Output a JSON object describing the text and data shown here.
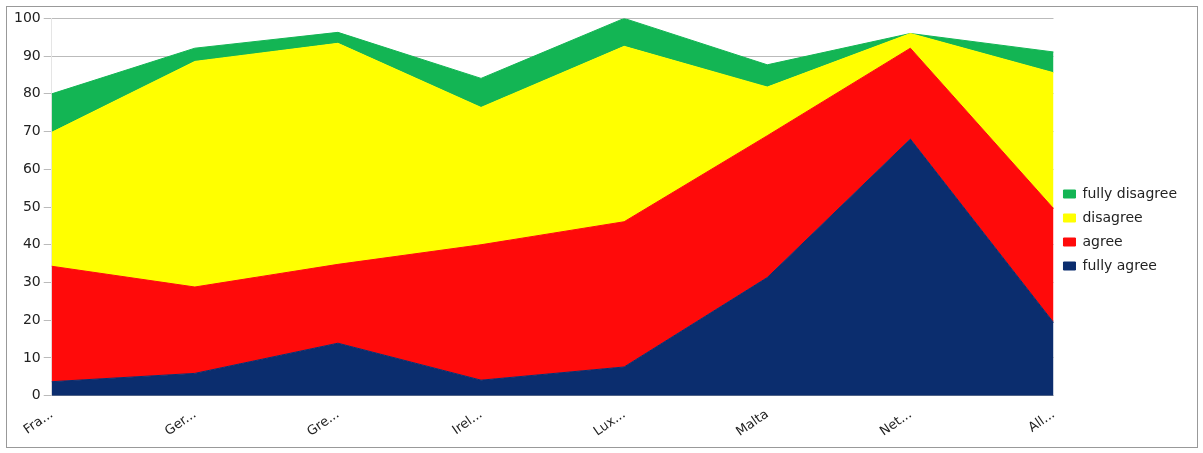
{
  "chart_data": {
    "type": "area",
    "stacked": true,
    "categories": [
      "Fra...",
      "Ger...",
      "Gre...",
      "Irel...",
      "Lux...",
      "Malta",
      "Net...",
      "All..."
    ],
    "series": [
      {
        "name": "fully agree",
        "color": "#0b2d6e",
        "values": [
          3.7,
          5.9,
          13.9,
          4.1,
          7.6,
          31.3,
          68,
          19.4
        ]
      },
      {
        "name": "agree",
        "color": "#ff0a0a",
        "values": [
          30.6,
          22.9,
          20.9,
          35.9,
          38.5,
          37.6,
          24.1,
          30.2
        ]
      },
      {
        "name": "disagree",
        "color": "#ffff00",
        "values": [
          35.5,
          59.8,
          58.6,
          36.4,
          46.5,
          12.9,
          3.9,
          36
        ]
      },
      {
        "name": "fully disagree",
        "color": "#13b554",
        "values": [
          10.2,
          3.5,
          2.9,
          7.7,
          7.4,
          5.9,
          0,
          5.5
        ]
      }
    ],
    "ylim": [
      0,
      100
    ],
    "yticks": [
      0,
      10,
      20,
      30,
      40,
      50,
      60,
      70,
      80,
      90,
      100
    ],
    "grid": "y",
    "legend": "right"
  }
}
